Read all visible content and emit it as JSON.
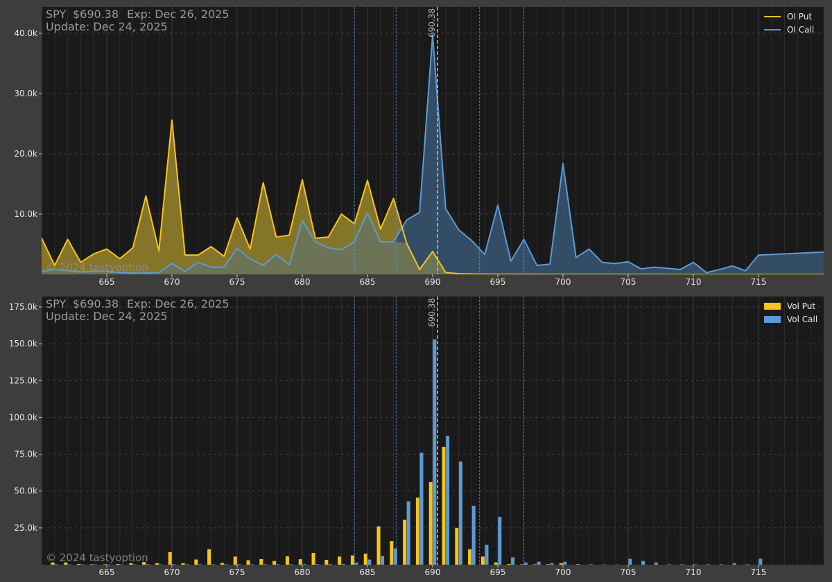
{
  "colors": {
    "page_bg": "#3d3d3d",
    "plot_bg": "#1a1a1a",
    "put": "#f8c31c",
    "call": "#5b9bd5",
    "put_fill": "#8a7a2a",
    "call_fill": "#36506b",
    "overlap_fill": "#6d7456",
    "tick_text": "#e6e6e6",
    "header_text": "#9a9a9a",
    "price_line": "#f8c31c",
    "level_line": "#5b9bd5"
  },
  "header": {
    "ticker": "SPY",
    "price": "$690.38",
    "expiration": "Exp: Dec 26, 2025",
    "update": "Update: Dec 24, 2025"
  },
  "watermark": "© 2024 tastyoption",
  "price_label": "690.38",
  "chart_data": [
    {
      "type": "area",
      "name": "open-interest",
      "xlim": [
        660,
        720
      ],
      "ylim": [
        0,
        40000
      ],
      "y_ticks": [
        10000,
        20000,
        30000,
        40000
      ],
      "y_tick_labels": [
        "10.0k",
        "20.0k",
        "30.0k",
        "40.0k"
      ],
      "x_ticks": [
        665,
        670,
        675,
        680,
        685,
        690,
        695,
        700,
        705,
        710,
        715
      ],
      "x_tick_labels": [
        "665",
        "670",
        "675",
        "680",
        "685",
        "690",
        "695",
        "700",
        "705",
        "710",
        "715"
      ],
      "grid": true,
      "legend_position": "top-right",
      "price_line": 690.38,
      "level_lines": [
        684,
        687.2,
        693.6,
        697
      ],
      "series": [
        {
          "name": "OI Put",
          "x": [
            660,
            661,
            662,
            663,
            664,
            665,
            666,
            667,
            668,
            669,
            670,
            671,
            672,
            673,
            674,
            675,
            676,
            677,
            678,
            679,
            680,
            681,
            682,
            683,
            684,
            685,
            686,
            687,
            688,
            689,
            690,
            691,
            692,
            693,
            694,
            695,
            700,
            705,
            710,
            715,
            720
          ],
          "values": [
            6000,
            1500,
            5800,
            2000,
            3400,
            4200,
            2600,
            4400,
            13000,
            3900,
            25600,
            3200,
            3200,
            4600,
            3000,
            9400,
            4200,
            15200,
            6200,
            6500,
            15700,
            6000,
            6200,
            10000,
            8400,
            15600,
            7500,
            12600,
            5200,
            800,
            3800,
            300,
            100,
            60,
            50,
            30,
            20,
            10,
            0,
            0,
            0
          ]
        },
        {
          "name": "OI Call",
          "x": [
            660,
            661,
            662,
            663,
            664,
            665,
            666,
            667,
            668,
            669,
            670,
            671,
            672,
            673,
            674,
            675,
            676,
            677,
            678,
            679,
            680,
            681,
            682,
            683,
            684,
            685,
            686,
            687,
            688,
            689,
            690,
            691,
            692,
            693,
            694,
            695,
            696,
            697,
            698,
            699,
            700,
            701,
            702,
            703,
            704,
            705,
            706,
            707,
            708,
            709,
            710,
            711,
            712,
            713,
            714,
            715,
            720
          ],
          "values": [
            500,
            800,
            600,
            400,
            500,
            500,
            300,
            200,
            200,
            300,
            1800,
            500,
            2000,
            1200,
            1200,
            4300,
            2600,
            1500,
            3300,
            1600,
            8900,
            5400,
            4400,
            4100,
            5400,
            10200,
            5400,
            5400,
            9000,
            10300,
            39700,
            10900,
            7400,
            5600,
            3300,
            11500,
            2200,
            5800,
            1500,
            1700,
            18400,
            2800,
            4200,
            2000,
            1800,
            2100,
            900,
            1200,
            1000,
            800,
            2000,
            300,
            800,
            1400,
            600,
            3200,
            3700
          ]
        }
      ]
    },
    {
      "type": "bar",
      "name": "volume",
      "xlim": [
        660,
        720
      ],
      "ylim": [
        0,
        175000
      ],
      "y_ticks": [
        25000,
        50000,
        75000,
        100000,
        125000,
        150000,
        175000
      ],
      "y_tick_labels": [
        "25.0k",
        "50.0k",
        "75.0k",
        "100.0k",
        "125.0k",
        "150.0k",
        "175.0k"
      ],
      "x_ticks": [
        665,
        670,
        675,
        680,
        685,
        690,
        695,
        700,
        705,
        710,
        715
      ],
      "x_tick_labels": [
        "665",
        "670",
        "675",
        "680",
        "685",
        "690",
        "695",
        "700",
        "705",
        "710",
        "715"
      ],
      "grid": true,
      "legend_position": "top-right",
      "price_line": 690.38,
      "level_lines": [
        684,
        687.2,
        693.6,
        697
      ],
      "series": [
        {
          "name": "Vol Put",
          "x": [
            661,
            662,
            663,
            664,
            665,
            666,
            667,
            668,
            669,
            670,
            671,
            672,
            673,
            674,
            675,
            676,
            677,
            678,
            679,
            680,
            681,
            682,
            683,
            684,
            685,
            686,
            687,
            688,
            689,
            690,
            691,
            692,
            693,
            694,
            695,
            696,
            697,
            698,
            699,
            700
          ],
          "values": [
            1500,
            1500,
            500,
            300,
            300,
            500,
            1000,
            1800,
            1000,
            8500,
            1000,
            3500,
            10500,
            1200,
            5500,
            3000,
            3800,
            2500,
            5700,
            3700,
            8000,
            3300,
            5500,
            6300,
            7500,
            26000,
            16000,
            30500,
            45500,
            56000,
            80000,
            25000,
            10500,
            5500,
            1500,
            500,
            300,
            300,
            300,
            1000
          ]
        },
        {
          "name": "Vol Call",
          "x": [
            661,
            662,
            663,
            664,
            665,
            666,
            667,
            668,
            669,
            670,
            671,
            672,
            673,
            674,
            675,
            676,
            677,
            678,
            679,
            680,
            681,
            682,
            683,
            684,
            685,
            686,
            687,
            688,
            689,
            690,
            691,
            692,
            693,
            694,
            695,
            696,
            697,
            698,
            699,
            700,
            701,
            702,
            703,
            704,
            705,
            706,
            707,
            708,
            709,
            710,
            711,
            712,
            713,
            714,
            715
          ],
          "values": [
            300,
            200,
            200,
            200,
            200,
            200,
            200,
            300,
            200,
            300,
            300,
            300,
            300,
            300,
            300,
            300,
            300,
            300,
            300,
            400,
            400,
            400,
            500,
            1500,
            3500,
            6000,
            11000,
            43000,
            76000,
            153000,
            87500,
            70000,
            40000,
            13500,
            32500,
            5000,
            1500,
            2000,
            1000,
            2000,
            500,
            300,
            200,
            200,
            4000,
            2500,
            1500,
            300,
            300,
            300,
            300,
            300,
            1000,
            300,
            4000
          ]
        }
      ]
    }
  ]
}
